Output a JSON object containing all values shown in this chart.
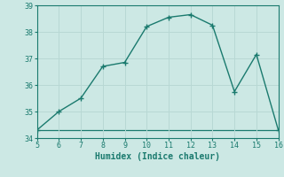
{
  "x": [
    5,
    6,
    7,
    8,
    9,
    10,
    11,
    12,
    13,
    14,
    15,
    16
  ],
  "y": [
    34.3,
    35.0,
    35.5,
    36.7,
    36.85,
    38.2,
    38.55,
    38.65,
    38.25,
    35.75,
    37.15,
    34.3
  ],
  "title": "",
  "xlabel": "Humidex (Indice chaleur)",
  "xlim": [
    5,
    16
  ],
  "ylim": [
    34,
    39
  ],
  "yticks": [
    34,
    35,
    36,
    37,
    38,
    39
  ],
  "xticks": [
    5,
    6,
    7,
    8,
    9,
    10,
    11,
    12,
    13,
    14,
    15,
    16
  ],
  "line_color": "#1a7a6e",
  "marker": "+",
  "bg_color": "#cce8e4",
  "grid_color": "#b8d8d4",
  "hline_y": 34.3,
  "hline_color": "#1a7a6e",
  "font_color": "#1a7a6e"
}
